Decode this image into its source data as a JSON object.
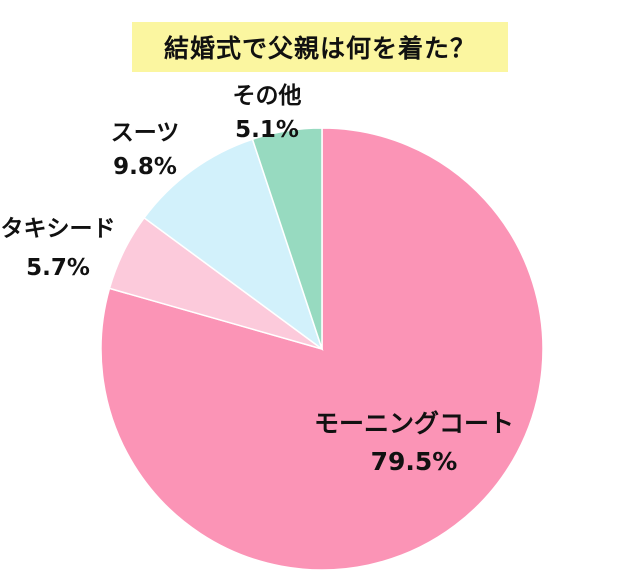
{
  "chart_data": {
    "type": "pie",
    "title": "結婚式で父親は何を着た？",
    "start_angle_deg": 0,
    "direction": "clockwise",
    "slices": [
      {
        "label": "モーニングコート",
        "value": 79.5,
        "value_label": "79.5%",
        "color": "#fb94b6"
      },
      {
        "label": "タキシード",
        "value": 5.7,
        "value_label": "5.7%",
        "color": "#fccadb"
      },
      {
        "label": "スーツ",
        "value": 9.8,
        "value_label": "9.8%",
        "color": "#d2f1fb"
      },
      {
        "label": "その他",
        "value": 5.1,
        "value_label": "5.1%",
        "color": "#97dac0"
      }
    ]
  }
}
